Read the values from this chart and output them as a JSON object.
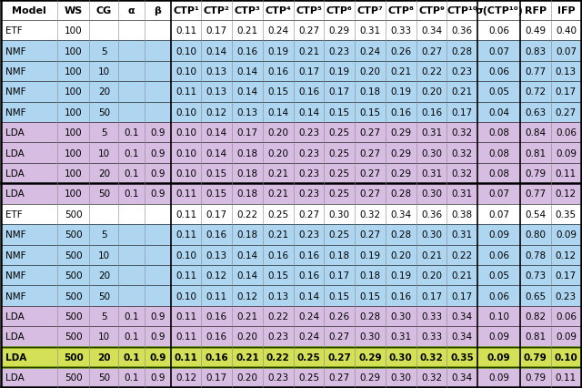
{
  "col_labels": [
    "Model",
    "WS",
    "CG",
    "α",
    "β",
    "CTP¹",
    "CTP²",
    "CTP³",
    "CTP⁴",
    "CTP⁵",
    "CTP⁶",
    "CTP⁷",
    "CTP⁸",
    "CTP⁹",
    "CTP¹⁰",
    "σ(CTP¹⁰)",
    "RFP",
    "IFP"
  ],
  "rows": [
    [
      "ETF",
      "100",
      "",
      "",
      "",
      "0.11",
      "0.17",
      "0.21",
      "0.24",
      "0.27",
      "0.29",
      "0.31",
      "0.33",
      "0.34",
      "0.36",
      "0.06",
      "0.49",
      "0.40"
    ],
    [
      "NMF",
      "100",
      "5",
      "",
      "",
      "0.10",
      "0.14",
      "0.16",
      "0.19",
      "0.21",
      "0.23",
      "0.24",
      "0.26",
      "0.27",
      "0.28",
      "0.07",
      "0.83",
      "0.07"
    ],
    [
      "NMF",
      "100",
      "10",
      "",
      "",
      "0.10",
      "0.13",
      "0.14",
      "0.16",
      "0.17",
      "0.19",
      "0.20",
      "0.21",
      "0.22",
      "0.23",
      "0.06",
      "0.77",
      "0.13"
    ],
    [
      "NMF",
      "100",
      "20",
      "",
      "",
      "0.11",
      "0.13",
      "0.14",
      "0.15",
      "0.16",
      "0.17",
      "0.18",
      "0.19",
      "0.20",
      "0.21",
      "0.05",
      "0.72",
      "0.17"
    ],
    [
      "NMF",
      "100",
      "50",
      "",
      "",
      "0.10",
      "0.12",
      "0.13",
      "0.14",
      "0.14",
      "0.15",
      "0.15",
      "0.16",
      "0.16",
      "0.17",
      "0.04",
      "0.63",
      "0.27"
    ],
    [
      "LDA",
      "100",
      "5",
      "0.1",
      "0.9",
      "0.10",
      "0.14",
      "0.17",
      "0.20",
      "0.23",
      "0.25",
      "0.27",
      "0.29",
      "0.31",
      "0.32",
      "0.08",
      "0.84",
      "0.06"
    ],
    [
      "LDA",
      "100",
      "10",
      "0.1",
      "0.9",
      "0.10",
      "0.14",
      "0.18",
      "0.20",
      "0.23",
      "0.25",
      "0.27",
      "0.29",
      "0.30",
      "0.32",
      "0.08",
      "0.81",
      "0.09"
    ],
    [
      "LDA",
      "100",
      "20",
      "0.1",
      "0.9",
      "0.10",
      "0.15",
      "0.18",
      "0.21",
      "0.23",
      "0.25",
      "0.27",
      "0.29",
      "0.31",
      "0.32",
      "0.08",
      "0.79",
      "0.11"
    ],
    [
      "LDA",
      "100",
      "50",
      "0.1",
      "0.9",
      "0.11",
      "0.15",
      "0.18",
      "0.21",
      "0.23",
      "0.25",
      "0.27",
      "0.28",
      "0.30",
      "0.31",
      "0.07",
      "0.77",
      "0.12"
    ],
    [
      "ETF",
      "500",
      "",
      "",
      "",
      "0.11",
      "0.17",
      "0.22",
      "0.25",
      "0.27",
      "0.30",
      "0.32",
      "0.34",
      "0.36",
      "0.38",
      "0.07",
      "0.54",
      "0.35"
    ],
    [
      "NMF",
      "500",
      "5",
      "",
      "",
      "0.11",
      "0.16",
      "0.18",
      "0.21",
      "0.23",
      "0.25",
      "0.27",
      "0.28",
      "0.30",
      "0.31",
      "0.09",
      "0.80",
      "0.09"
    ],
    [
      "NMF",
      "500",
      "10",
      "",
      "",
      "0.10",
      "0.13",
      "0.14",
      "0.16",
      "0.16",
      "0.18",
      "0.19",
      "0.20",
      "0.21",
      "0.22",
      "0.06",
      "0.78",
      "0.12"
    ],
    [
      "NMF",
      "500",
      "20",
      "",
      "",
      "0.11",
      "0.12",
      "0.14",
      "0.15",
      "0.16",
      "0.17",
      "0.18",
      "0.19",
      "0.20",
      "0.21",
      "0.05",
      "0.73",
      "0.17"
    ],
    [
      "NMF",
      "500",
      "50",
      "",
      "",
      "0.10",
      "0.11",
      "0.12",
      "0.13",
      "0.14",
      "0.15",
      "0.15",
      "0.16",
      "0.17",
      "0.17",
      "0.06",
      "0.65",
      "0.23"
    ],
    [
      "LDA",
      "500",
      "5",
      "0.1",
      "0.9",
      "0.11",
      "0.16",
      "0.21",
      "0.22",
      "0.24",
      "0.26",
      "0.28",
      "0.30",
      "0.33",
      "0.34",
      "0.10",
      "0.82",
      "0.06"
    ],
    [
      "LDA",
      "500",
      "10",
      "0.1",
      "0.9",
      "0.11",
      "0.16",
      "0.20",
      "0.23",
      "0.24",
      "0.27",
      "0.30",
      "0.31",
      "0.33",
      "0.34",
      "0.09",
      "0.81",
      "0.09"
    ],
    [
      "LDA",
      "500",
      "20",
      "0.1",
      "0.9",
      "0.11",
      "0.16",
      "0.21",
      "0.22",
      "0.25",
      "0.27",
      "0.29",
      "0.30",
      "0.32",
      "0.35",
      "0.09",
      "0.79",
      "0.10"
    ],
    [
      "LDA",
      "500",
      "50",
      "0.1",
      "0.9",
      "0.12",
      "0.17",
      "0.20",
      "0.23",
      "0.25",
      "0.27",
      "0.29",
      "0.30",
      "0.32",
      "0.34",
      "0.09",
      "0.79",
      "0.11"
    ]
  ],
  "highlight_row": 16,
  "separator_after_row": 9,
  "bg_color_etf": "#ffffff",
  "bg_color_nmf": "#aed6f1",
  "bg_color_lda": "#d7bde2",
  "bg_color_highlight": "#d4e157",
  "col_widths": [
    1.2,
    0.68,
    0.62,
    0.55,
    0.55,
    0.65,
    0.65,
    0.65,
    0.65,
    0.65,
    0.65,
    0.65,
    0.65,
    0.65,
    0.65,
    0.9,
    0.65,
    0.65
  ],
  "font_size": 7.5,
  "header_font_size": 8.0,
  "thick_sep_cols": [
    5,
    15,
    16
  ]
}
